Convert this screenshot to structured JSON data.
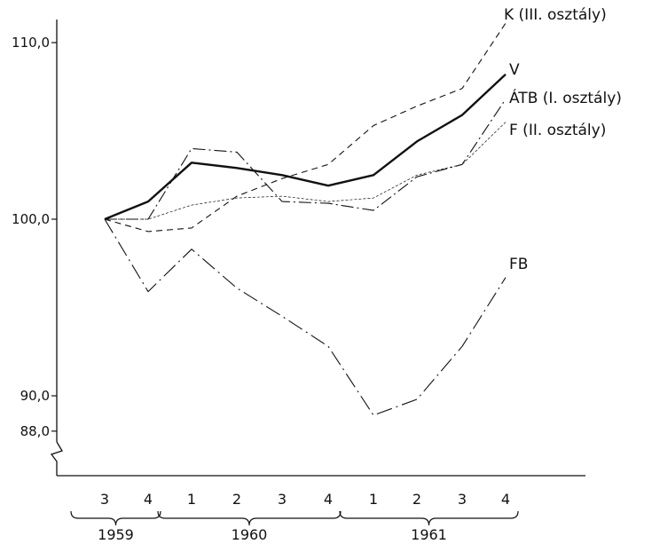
{
  "chart_data": {
    "type": "line",
    "title": "",
    "xlabel": "",
    "ylabel": "",
    "ylim": [
      88.0,
      111.0
    ],
    "y_ticks": [
      "110,0",
      "100,0",
      "90,0",
      "88,0"
    ],
    "y_tick_values": [
      110.0,
      100.0,
      90.0,
      88.0
    ],
    "y_axis_break": true,
    "grid": false,
    "categories": [
      "3",
      "4",
      "1",
      "2",
      "3",
      "4",
      "1",
      "2",
      "3",
      "4"
    ],
    "years": [
      {
        "label": "1959",
        "span": [
          0,
          1
        ]
      },
      {
        "label": "1960",
        "span": [
          2,
          5
        ]
      },
      {
        "label": "1961",
        "span": [
          6,
          9
        ]
      }
    ],
    "series": [
      {
        "name": "K (III. osztály)",
        "style": "dashed",
        "values": [
          100.0,
          99.3,
          99.5,
          101.3,
          102.3,
          103.1,
          105.3,
          106.4,
          107.4,
          111.1
        ]
      },
      {
        "name": "V",
        "style": "solid-bold",
        "values": [
          100.0,
          101.0,
          103.2,
          102.9,
          102.5,
          101.9,
          102.5,
          104.4,
          105.9,
          108.2
        ]
      },
      {
        "name": "ÁTB (I. osztály)",
        "style": "dash-dot-long",
        "values": [
          100.0,
          100.0,
          104.0,
          103.8,
          101.0,
          100.9,
          100.5,
          102.4,
          103.1,
          106.8
        ]
      },
      {
        "name": "F (II. osztály)",
        "style": "dotted-thin",
        "values": [
          100.0,
          100.0,
          100.8,
          101.2,
          101.3,
          101.0,
          101.2,
          102.5,
          103.1,
          105.5
        ]
      },
      {
        "name": "FB",
        "style": "long-dash-dot",
        "values": [
          100.0,
          95.9,
          98.3,
          96.1,
          94.5,
          92.8,
          88.9,
          89.8,
          92.8,
          96.7
        ]
      }
    ]
  }
}
